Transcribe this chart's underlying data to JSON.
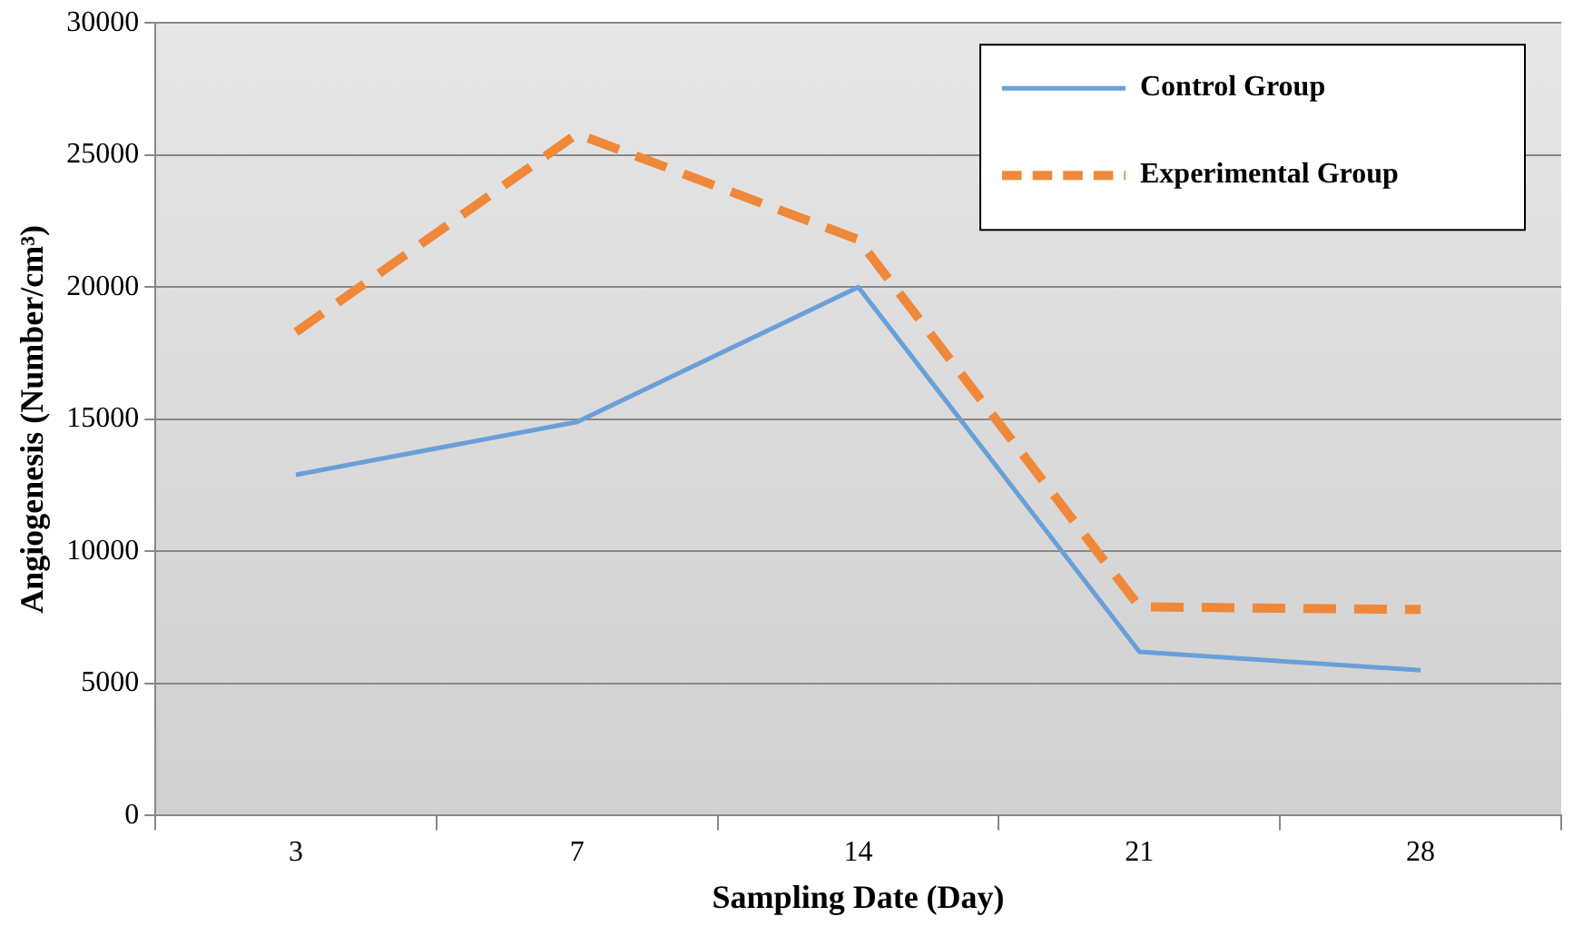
{
  "chart_data": {
    "type": "line",
    "xlabel": "Sampling Date (Day)",
    "ylabel": "Angiogenesis (Number/cm³)",
    "categories": [
      "3",
      "7",
      "14",
      "21",
      "28"
    ],
    "series": [
      {
        "name": "Control Group",
        "color": "#6a9fd8",
        "values": [
          12900,
          14900,
          20000,
          6200,
          5500
        ]
      },
      {
        "name": "Experimental Group",
        "color": "#f0883a",
        "line_style": "dashed",
        "values": [
          18300,
          25800,
          21800,
          7900,
          7800
        ]
      }
    ],
    "ylim": [
      0,
      30000
    ],
    "yticks": [
      0,
      5000,
      10000,
      15000,
      20000,
      25000,
      30000
    ],
    "grid": "y",
    "legend": "top right",
    "marker": "none"
  }
}
